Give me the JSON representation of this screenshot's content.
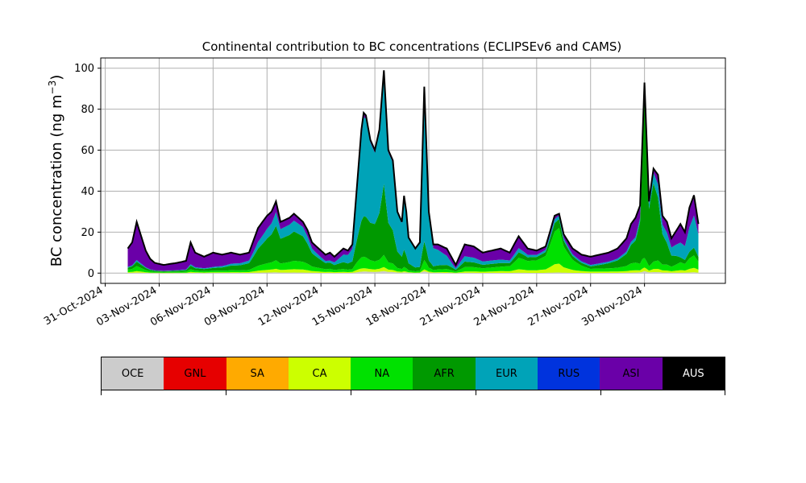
{
  "chart_data": {
    "type": "area",
    "stacked": true,
    "title": "Continental contribution to BC concentrations (ECLIPSEv6 and CAMS)",
    "ylabel_main": "BC concentration (ng m",
    "ylabel_sup": "−3",
    "ylabel_end": ")",
    "ylim": [
      -5,
      105
    ],
    "yticks": [
      0,
      20,
      40,
      60,
      80,
      100
    ],
    "xlim": [
      "2024-10-30T18:00",
      "2024-12-04T12:00"
    ],
    "xticks": [
      "31-Oct-2024",
      "03-Nov-2024",
      "06-Nov-2024",
      "09-Nov-2024",
      "12-Nov-2024",
      "15-Nov-2024",
      "18-Nov-2024",
      "21-Nov-2024",
      "24-Nov-2024",
      "27-Nov-2024",
      "30-Nov-2024"
    ],
    "grid": true,
    "series_order": [
      "OCE",
      "GNL",
      "SA",
      "CA",
      "NA",
      "AFR",
      "EUR",
      "RUS",
      "ASI",
      "AUS"
    ],
    "series_colors": {
      "OCE": "#cccccc",
      "GNL": "#e60000",
      "SA": "#ffaa00",
      "CA": "#ccff00",
      "NA": "#00e100",
      "AFR": "#009900",
      "EUR": "#00a3b8",
      "RUS": "#0033dd",
      "ASI": "#6a00a8",
      "AUS": "#000000"
    },
    "total_keypoints": [
      [
        "2024-11-01T06:00",
        12
      ],
      [
        "2024-11-01T12:00",
        15
      ],
      [
        "2024-11-01T18:00",
        25
      ],
      [
        "2024-11-02T00:00",
        18
      ],
      [
        "2024-11-02T06:00",
        11
      ],
      [
        "2024-11-02T12:00",
        7
      ],
      [
        "2024-11-02T18:00",
        5
      ],
      [
        "2024-11-03T06:00",
        4
      ],
      [
        "2024-11-04T00:00",
        5
      ],
      [
        "2024-11-04T12:00",
        6
      ],
      [
        "2024-11-04T18:00",
        15
      ],
      [
        "2024-11-05T00:00",
        10
      ],
      [
        "2024-11-05T12:00",
        8
      ],
      [
        "2024-11-06T00:00",
        10
      ],
      [
        "2024-11-06T12:00",
        9
      ],
      [
        "2024-11-07T00:00",
        10
      ],
      [
        "2024-11-07T12:00",
        9
      ],
      [
        "2024-11-08T00:00",
        10
      ],
      [
        "2024-11-08T12:00",
        22
      ],
      [
        "2024-11-09T00:00",
        28
      ],
      [
        "2024-11-09T06:00",
        30
      ],
      [
        "2024-11-09T12:00",
        35
      ],
      [
        "2024-11-09T18:00",
        25
      ],
      [
        "2024-11-10T06:00",
        27
      ],
      [
        "2024-11-10T12:00",
        29
      ],
      [
        "2024-11-11T00:00",
        25
      ],
      [
        "2024-11-11T06:00",
        21
      ],
      [
        "2024-11-11T12:00",
        15
      ],
      [
        "2024-11-11T18:00",
        13
      ],
      [
        "2024-11-12T06:00",
        9
      ],
      [
        "2024-11-12T12:00",
        10
      ],
      [
        "2024-11-12T18:00",
        8
      ],
      [
        "2024-11-13T06:00",
        12
      ],
      [
        "2024-11-13T12:00",
        11
      ],
      [
        "2024-11-13T18:00",
        14
      ],
      [
        "2024-11-14T06:00",
        70
      ],
      [
        "2024-11-14T10:00",
        81
      ],
      [
        "2024-11-14T18:00",
        65
      ],
      [
        "2024-11-15T00:00",
        60
      ],
      [
        "2024-11-15T06:00",
        70
      ],
      [
        "2024-11-15T12:00",
        99
      ],
      [
        "2024-11-15T18:00",
        60
      ],
      [
        "2024-11-16T00:00",
        55
      ],
      [
        "2024-11-16T06:00",
        30
      ],
      [
        "2024-11-16T12:00",
        25
      ],
      [
        "2024-11-16T16:00",
        42
      ],
      [
        "2024-11-16T20:00",
        18
      ],
      [
        "2024-11-17T06:00",
        12
      ],
      [
        "2024-11-17T12:00",
        15
      ],
      [
        "2024-11-17T18:00",
        91
      ],
      [
        "2024-11-18T00:00",
        30
      ],
      [
        "2024-11-18T06:00",
        14
      ],
      [
        "2024-11-18T12:00",
        14
      ],
      [
        "2024-11-19T00:00",
        12
      ],
      [
        "2024-11-19T12:00",
        4
      ],
      [
        "2024-11-20T00:00",
        14
      ],
      [
        "2024-11-20T12:00",
        13
      ],
      [
        "2024-11-21T00:00",
        10
      ],
      [
        "2024-11-21T12:00",
        11
      ],
      [
        "2024-11-22T00:00",
        12
      ],
      [
        "2024-11-22T12:00",
        10
      ],
      [
        "2024-11-23T00:00",
        18
      ],
      [
        "2024-11-23T12:00",
        12
      ],
      [
        "2024-11-24T00:00",
        11
      ],
      [
        "2024-11-24T12:00",
        13
      ],
      [
        "2024-11-25T00:00",
        28
      ],
      [
        "2024-11-25T06:00",
        29
      ],
      [
        "2024-11-25T12:00",
        19
      ],
      [
        "2024-11-26T00:00",
        12
      ],
      [
        "2024-11-26T12:00",
        9
      ],
      [
        "2024-11-27T00:00",
        8
      ],
      [
        "2024-11-27T12:00",
        9
      ],
      [
        "2024-11-28T00:00",
        10
      ],
      [
        "2024-11-28T12:00",
        12
      ],
      [
        "2024-11-29T00:00",
        17
      ],
      [
        "2024-11-29T06:00",
        24
      ],
      [
        "2024-11-29T12:00",
        27
      ],
      [
        "2024-11-29T18:00",
        33
      ],
      [
        "2024-11-30T00:00",
        93
      ],
      [
        "2024-11-30T06:00",
        35
      ],
      [
        "2024-11-30T12:00",
        51
      ],
      [
        "2024-11-30T18:00",
        48
      ],
      [
        "2024-12-01T00:00",
        28
      ],
      [
        "2024-12-01T06:00",
        25
      ],
      [
        "2024-12-01T12:00",
        17
      ],
      [
        "2024-12-02T00:00",
        24
      ],
      [
        "2024-12-02T06:00",
        20
      ],
      [
        "2024-12-02T12:00",
        32
      ],
      [
        "2024-12-02T18:00",
        38
      ],
      [
        "2024-12-03T00:00",
        24
      ]
    ],
    "composition_keypoints": [
      {
        "t": "2024-11-01T06:00",
        "f": [
          0.01,
          0.0,
          0.0,
          0.03,
          0.1,
          0.08,
          0.03,
          0.0,
          0.75
        ]
      },
      {
        "t": "2024-11-06T00:00",
        "f": [
          0.01,
          0.0,
          0.0,
          0.03,
          0.08,
          0.13,
          0.05,
          0.0,
          0.7
        ]
      },
      {
        "t": "2024-11-09T12:00",
        "f": [
          0.01,
          0.0,
          0.0,
          0.05,
          0.12,
          0.48,
          0.19,
          0.0,
          0.15
        ]
      },
      {
        "t": "2024-11-11T00:00",
        "f": [
          0.01,
          0.0,
          0.0,
          0.06,
          0.15,
          0.5,
          0.18,
          0.0,
          0.1
        ]
      },
      {
        "t": "2024-11-12T12:00",
        "f": [
          0.01,
          0.0,
          0.0,
          0.05,
          0.15,
          0.3,
          0.1,
          0.0,
          0.39
        ]
      },
      {
        "t": "2024-11-14T10:00",
        "f": [
          0.01,
          0.0,
          0.0,
          0.02,
          0.07,
          0.25,
          0.63,
          0.0,
          0.02
        ]
      },
      {
        "t": "2024-11-15T12:00",
        "f": [
          0.01,
          0.0,
          0.0,
          0.02,
          0.06,
          0.35,
          0.54,
          0.0,
          0.02
        ]
      },
      {
        "t": "2024-11-17T18:00",
        "f": [
          0.01,
          0.0,
          0.0,
          0.01,
          0.05,
          0.1,
          0.81,
          0.0,
          0.02
        ]
      },
      {
        "t": "2024-11-19T12:00",
        "f": [
          0.01,
          0.0,
          0.0,
          0.04,
          0.15,
          0.2,
          0.2,
          0.0,
          0.4
        ]
      },
      {
        "t": "2024-11-22T00:00",
        "f": [
          0.01,
          0.0,
          0.0,
          0.07,
          0.18,
          0.15,
          0.14,
          0.0,
          0.45
        ]
      },
      {
        "t": "2024-11-25T06:00",
        "f": [
          0.01,
          0.0,
          0.0,
          0.15,
          0.6,
          0.15,
          0.06,
          0.0,
          0.03
        ]
      },
      {
        "t": "2024-11-27T00:00",
        "f": [
          0.01,
          0.0,
          0.0,
          0.08,
          0.17,
          0.15,
          0.09,
          0.0,
          0.5
        ]
      },
      {
        "t": "2024-11-29T12:00",
        "f": [
          0.01,
          0.0,
          0.0,
          0.04,
          0.14,
          0.4,
          0.06,
          0.0,
          0.35
        ]
      },
      {
        "t": "2024-11-30T00:00",
        "f": [
          0.01,
          0.0,
          0.0,
          0.02,
          0.05,
          0.85,
          0.05,
          0.0,
          0.02
        ]
      },
      {
        "t": "2024-11-30T12:00",
        "f": [
          0.01,
          0.0,
          0.0,
          0.03,
          0.07,
          0.75,
          0.1,
          0.0,
          0.04
        ]
      },
      {
        "t": "2024-12-02T00:00",
        "f": [
          0.01,
          0.0,
          0.0,
          0.05,
          0.16,
          0.1,
          0.3,
          0.0,
          0.38
        ]
      },
      {
        "t": "2024-12-03T00:00",
        "f": [
          0.01,
          0.0,
          0.0,
          0.06,
          0.16,
          0.1,
          0.45,
          0.0,
          0.22
        ]
      }
    ],
    "legend": {
      "placement": "bottom-colorbar",
      "entries": [
        {
          "label": "OCE",
          "color": "#cccccc"
        },
        {
          "label": "GNL",
          "color": "#e60000"
        },
        {
          "label": "SA",
          "color": "#ffaa00"
        },
        {
          "label": "CA",
          "color": "#ccff00"
        },
        {
          "label": "NA",
          "color": "#00e100"
        },
        {
          "label": "AFR",
          "color": "#009900"
        },
        {
          "label": "EUR",
          "color": "#00a3b8"
        },
        {
          "label": "RUS",
          "color": "#0033dd"
        },
        {
          "label": "ASI",
          "color": "#6a00a8"
        },
        {
          "label": "AUS",
          "color": "#000000"
        }
      ]
    }
  }
}
